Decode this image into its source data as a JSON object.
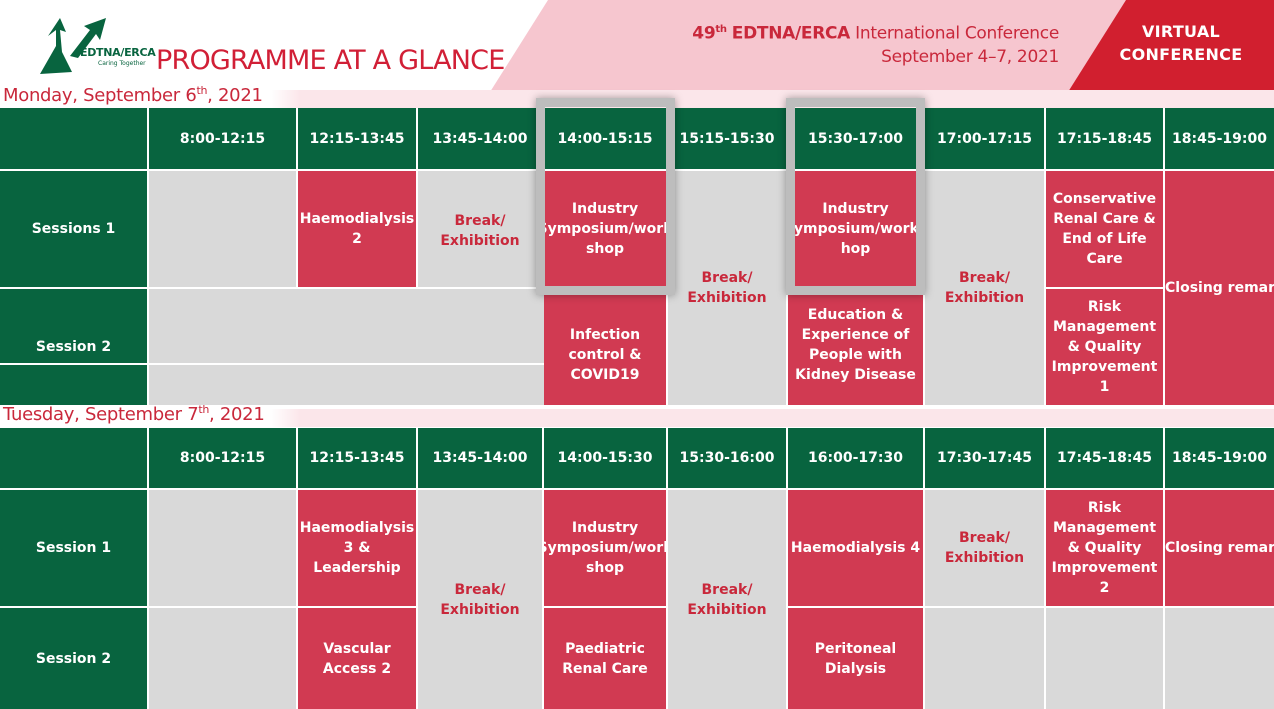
{
  "header": {
    "logo_text": "EDTNA/ERCA",
    "logo_tagline": "Caring Together",
    "title": "PROGRAMME AT A GLANCE",
    "conference_number": "49",
    "conference_number_suffix": "th",
    "conference_org": "EDTNA/ERCA",
    "conference_name": "International Conference",
    "conference_dates": "September 4–7, 2021",
    "virtual_line1": "VIRTUAL",
    "virtual_line2": "CONFERENCE"
  },
  "colors": {
    "green": "#08643f",
    "red": "#d13a52",
    "grey": "#d9d9d9",
    "pink": "#f6c6cf",
    "brand_red": "#d11f2f"
  },
  "monday": {
    "label_pre": "Monday, September 6",
    "label_sup": "th",
    "label_post": ", 2021",
    "times": [
      "8:00-12:15",
      "12:15-13:45",
      "13:45-14:00",
      "14:00-15:15",
      "15:15-15:30",
      "15:30-17:00",
      "17:00-17:15",
      "17:15-18:45",
      "18:45-19:00"
    ],
    "session1": "Sessions 1",
    "session2": "Session 2",
    "haemodialysis2": "Haemodialysis 2",
    "break1": "Break/ Exhibition",
    "industry1": "Industry Symposium/work shop",
    "break2": "Break/ Exhibition",
    "industry2": "Industry Symposium/works hop",
    "break3": "Break/ Exhibition",
    "conservative": "Conservative Renal Care & End of Life Care",
    "closing": "Closing remarks",
    "infection": "Infection control & COVID19",
    "education": "Education & Experience of People with Kidney Disease",
    "risk1": "Risk Management & Quality Improvement 1"
  },
  "tuesday": {
    "label_pre": "Tuesday, September 7",
    "label_sup": "th",
    "label_post": ", 2021",
    "times": [
      "8:00-12:15",
      "12:15-13:45",
      "13:45-14:00",
      "14:00-15:30",
      "15:30-16:00",
      "16:00-17:30",
      "17:30-17:45",
      "17:45-18:45",
      "18:45-19:00"
    ],
    "session1": "Session 1",
    "session2": "Session 2",
    "haemodialysis3": "Haemodialysis 3 & Leadership",
    "break1": "Break/ Exhibition",
    "industry": "Industry Symposium/work shop",
    "break2": "Break/ Exhibition",
    "haemodialysis4": "Haemodialysis 4",
    "break3": "Break/ Exhibition",
    "risk2": "Risk Management & Quality Improvement 2",
    "closing": "Closing remarks",
    "vascular": "Vascular Access 2",
    "paediatric": "Paediatric Renal Care",
    "peritoneal": "Peritoneal Dialysis"
  }
}
